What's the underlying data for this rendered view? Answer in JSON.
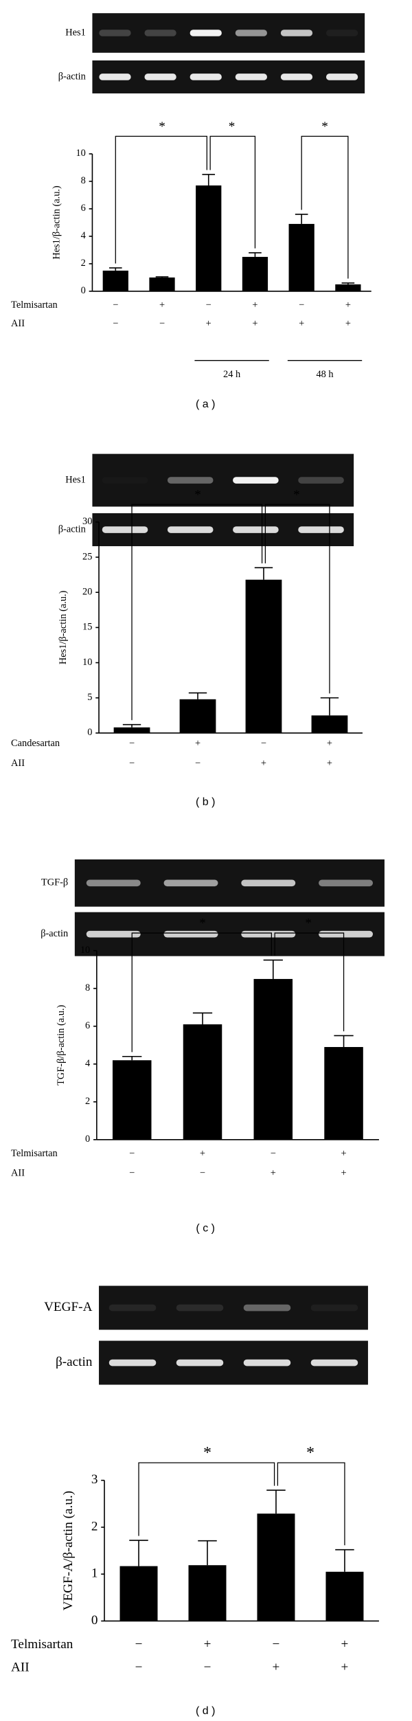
{
  "chart_data": [
    {
      "type": "bar",
      "panel_label": "( a )",
      "gels": [
        {
          "label": "Hes1"
        },
        {
          "label": "β-actin"
        }
      ],
      "ylabel": "Hes1/β-actin (a.u.)",
      "values": [
        1.5,
        1.0,
        7.7,
        2.5,
        4.9,
        0.5
      ],
      "errors": [
        0.2,
        0.05,
        0.8,
        0.3,
        0.7,
        0.1
      ],
      "color": "#000000",
      "ylim": [
        0,
        10
      ],
      "yticks": [
        0,
        2,
        4,
        6,
        8,
        10
      ],
      "treatments": [
        {
          "name": "Telmisartan",
          "signs": [
            "−",
            "+",
            "−",
            "+",
            "−",
            "+"
          ]
        },
        {
          "name": "AII",
          "signs": [
            "−",
            "−",
            "+",
            "+",
            "+",
            "+"
          ]
        }
      ],
      "significance": [
        {
          "from": 0,
          "to": 2,
          "label": "*"
        },
        {
          "from": 2,
          "to": 3,
          "label": "*"
        },
        {
          "from": 4,
          "to": 5,
          "label": "*"
        }
      ],
      "time_labels": [
        {
          "from": 2,
          "to": 3,
          "label": "24 h"
        },
        {
          "from": 4,
          "to": 5,
          "label": "48 h"
        }
      ]
    },
    {
      "type": "bar",
      "panel_label": "( b )",
      "gels": [
        {
          "label": "Hes1"
        },
        {
          "label": "β-actin"
        }
      ],
      "ylabel": "Hes1/β-actin (a.u.)",
      "values": [
        0.8,
        4.8,
        21.8,
        2.5
      ],
      "errors": [
        0.4,
        0.9,
        1.7,
        2.5
      ],
      "color": "#000000",
      "ylim": [
        0,
        30
      ],
      "yticks": [
        0,
        5,
        10,
        15,
        20,
        25,
        30
      ],
      "treatments": [
        {
          "name": "Candesartan",
          "signs": [
            "−",
            "+",
            "−",
            "+"
          ]
        },
        {
          "name": "AII",
          "signs": [
            "−",
            "−",
            "+",
            "+"
          ]
        }
      ],
      "significance": [
        {
          "from": 0,
          "to": 2,
          "label": "*"
        },
        {
          "from": 2,
          "to": 3,
          "label": "*"
        }
      ]
    },
    {
      "type": "bar",
      "panel_label": "( c )",
      "gels": [
        {
          "label": "TGF-β"
        },
        {
          "label": "β-actin"
        }
      ],
      "ylabel": "TGF-β/β-actin (a.u.)",
      "values": [
        4.2,
        6.1,
        8.5,
        4.9
      ],
      "errors": [
        0.2,
        0.6,
        1.0,
        0.6
      ],
      "color": "#000000",
      "ylim": [
        0,
        10
      ],
      "yticks": [
        0,
        2,
        4,
        6,
        8,
        10
      ],
      "treatments": [
        {
          "name": "Telmisartan",
          "signs": [
            "−",
            "+",
            "−",
            "+"
          ]
        },
        {
          "name": "AII",
          "signs": [
            "−",
            "−",
            "+",
            "+"
          ]
        }
      ],
      "significance": [
        {
          "from": 0,
          "to": 2,
          "label": "*"
        },
        {
          "from": 2,
          "to": 3,
          "label": "*"
        }
      ]
    },
    {
      "type": "bar",
      "panel_label": "( d )",
      "gels": [
        {
          "label": "VEGF-A"
        },
        {
          "label": "β-actin"
        }
      ],
      "ylabel": "VEGF-A/β-actin (a.u.)",
      "values": [
        1.17,
        1.19,
        2.29,
        1.05
      ],
      "errors": [
        0.55,
        0.52,
        0.5,
        0.47
      ],
      "color": "#000000",
      "ylim": [
        0,
        3
      ],
      "yticks": [
        0,
        1,
        2,
        3
      ],
      "treatments": [
        {
          "name": "Telmisartan",
          "signs": [
            "−",
            "+",
            "−",
            "+"
          ]
        },
        {
          "name": "AII",
          "signs": [
            "−",
            "−",
            "+",
            "+"
          ]
        }
      ],
      "significance": [
        {
          "from": 0,
          "to": 2,
          "label": "*"
        },
        {
          "from": 2,
          "to": 3,
          "label": "*"
        }
      ]
    }
  ]
}
